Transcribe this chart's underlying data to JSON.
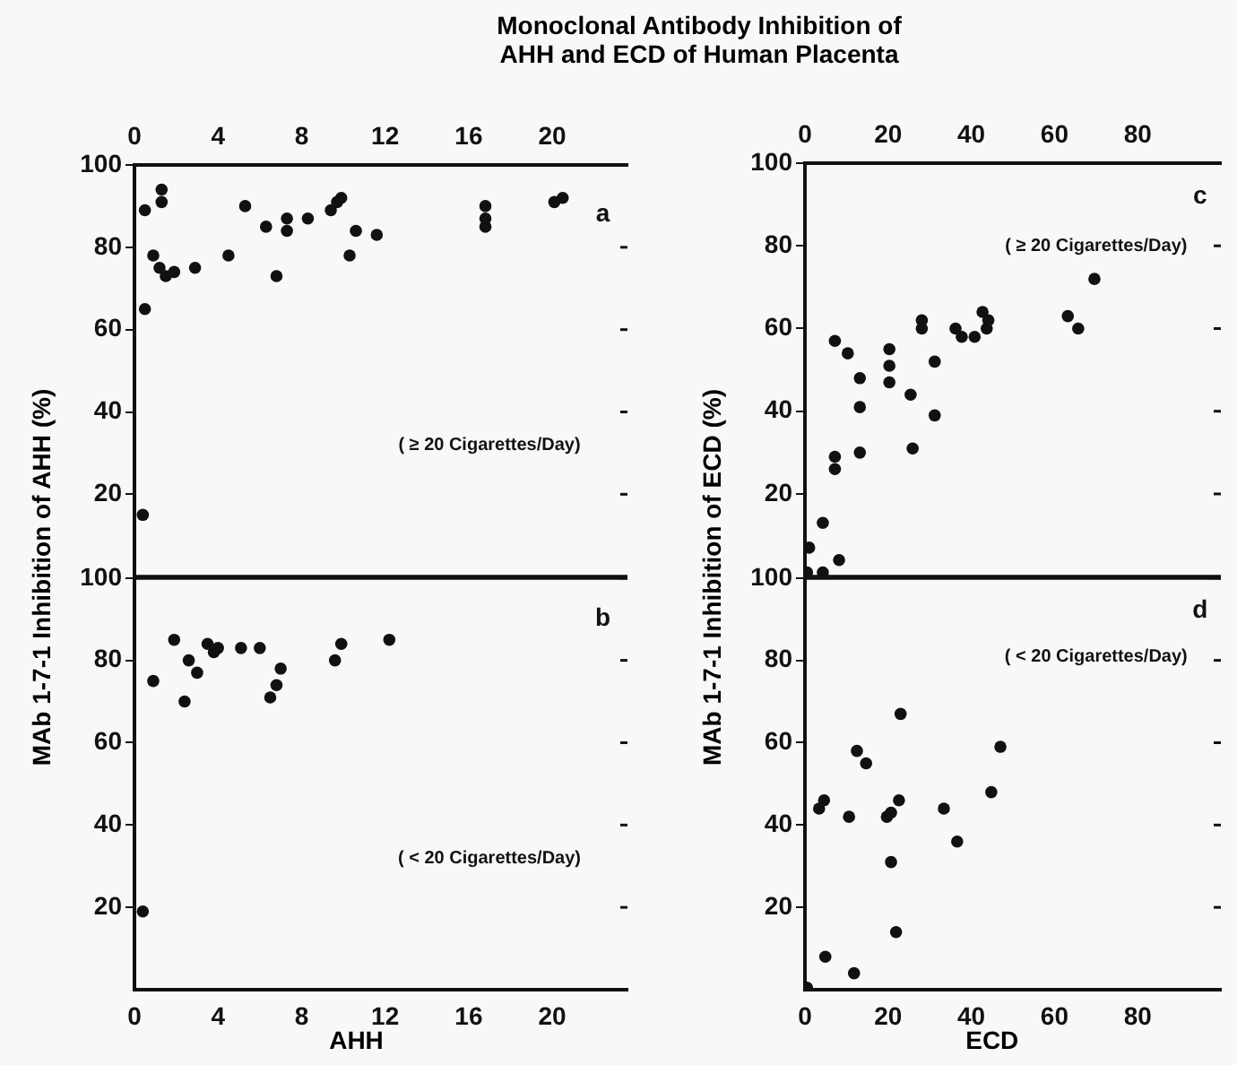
{
  "chart_data": [
    {
      "type": "scatter",
      "title": "Monoclonal Antibody Inhibition of\nAHH and ECD of Human Placenta",
      "ylabel": "MAb 1-7-1 Inhibition of AHH (%)",
      "annotations": [
        "a",
        "( ≥ 20 Cigarettes/Day)"
      ],
      "marker": "circle",
      "grid": false,
      "xlim": [
        0,
        23.6
      ],
      "xticks": [
        0,
        4,
        8,
        12,
        16,
        20
      ],
      "ylim": [
        0,
        100
      ],
      "yticks": [
        20,
        40,
        60,
        80,
        100
      ],
      "series": [
        {
          "color": "#111111",
          "x": [
            0.5,
            1.3,
            1.3,
            0.9,
            1.2,
            1.5,
            1.9,
            2.9,
            4.5,
            5.3,
            6.3,
            6.8,
            7.3,
            7.3,
            8.3,
            9.4,
            9.7,
            9.9,
            10.3,
            10.6,
            11.6,
            16.8,
            16.8,
            16.8,
            20.1,
            20.5,
            0.5,
            0.4
          ],
          "values": [
            89,
            94,
            91,
            78,
            75,
            73,
            74,
            75,
            78,
            90,
            85,
            73,
            87,
            84,
            87,
            89,
            91,
            92,
            78,
            84,
            83,
            90,
            87,
            85,
            91,
            92,
            65,
            15
          ]
        }
      ]
    },
    {
      "type": "scatter",
      "xlabel": "AHH",
      "annotations": [
        "b",
        "( < 20 Cigarettes/Day)"
      ],
      "marker": "circle",
      "grid": false,
      "xlim": [
        0,
        23.6
      ],
      "xticks": [
        0,
        4,
        8,
        12,
        16,
        20
      ],
      "ylim": [
        0,
        100
      ],
      "yticks": [
        20,
        40,
        60,
        80,
        100
      ],
      "series": [
        {
          "color": "#111111",
          "x": [
            1.9,
            0.9,
            2.4,
            2.6,
            3.0,
            3.5,
            3.8,
            4.0,
            5.1,
            6.0,
            6.5,
            6.8,
            7.0,
            9.6,
            9.9,
            12.2,
            0.4
          ],
          "values": [
            85,
            75,
            70,
            80,
            77,
            84,
            82,
            83,
            83,
            83,
            71,
            74,
            78,
            80,
            84,
            85,
            19
          ]
        }
      ]
    },
    {
      "type": "scatter",
      "ylabel": "MAb 1-7-1 Inhibition of ECD (%)",
      "annotations": [
        "c",
        "( ≥ 20 Cigarettes/Day)"
      ],
      "marker": "circle",
      "grid": false,
      "xlim": [
        0,
        100
      ],
      "xticks": [
        0,
        20,
        40,
        60,
        80
      ],
      "ylim": [
        0,
        100
      ],
      "yticks": [
        20,
        40,
        60,
        80,
        100
      ],
      "series": [
        {
          "color": "#111111",
          "x": [
            7.2,
            10.3,
            7.2,
            7.2,
            4.3,
            13.2,
            13.2,
            13.2,
            20.3,
            20.3,
            20.3,
            25.4,
            25.9,
            28.1,
            28.1,
            31.2,
            31.2,
            36.2,
            37.7,
            40.8,
            42.7,
            44.1,
            43.7,
            63.2,
            65.7,
            69.6,
            1.0,
            8.2,
            0.5,
            4.3
          ],
          "values": [
            57,
            54,
            29,
            26,
            13,
            48,
            41,
            30,
            55,
            51,
            47,
            44,
            31,
            62,
            60,
            52,
            39,
            60,
            58,
            58,
            64,
            62,
            60,
            63,
            60,
            72,
            7,
            4,
            1,
            1
          ]
        }
      ]
    },
    {
      "type": "scatter",
      "xlabel": "ECD",
      "annotations": [
        "d",
        "( < 20 Cigarettes/Day)"
      ],
      "marker": "circle",
      "grid": false,
      "xlim": [
        0,
        100
      ],
      "xticks": [
        0,
        20,
        40,
        60,
        80
      ],
      "ylim": [
        0,
        100
      ],
      "yticks": [
        20,
        40,
        60,
        80,
        100
      ],
      "series": [
        {
          "color": "#111111",
          "x": [
            3.4,
            4.6,
            10.6,
            12.5,
            14.7,
            4.9,
            11.8,
            0.5,
            19.7,
            20.7,
            22.6,
            23.0,
            20.7,
            21.9,
            33.4,
            36.6,
            44.8,
            47.0
          ],
          "values": [
            44,
            46,
            42,
            58,
            55,
            8,
            4,
            0.5,
            42,
            43,
            46,
            67,
            31,
            14,
            44,
            36,
            48,
            59
          ]
        }
      ]
    }
  ]
}
